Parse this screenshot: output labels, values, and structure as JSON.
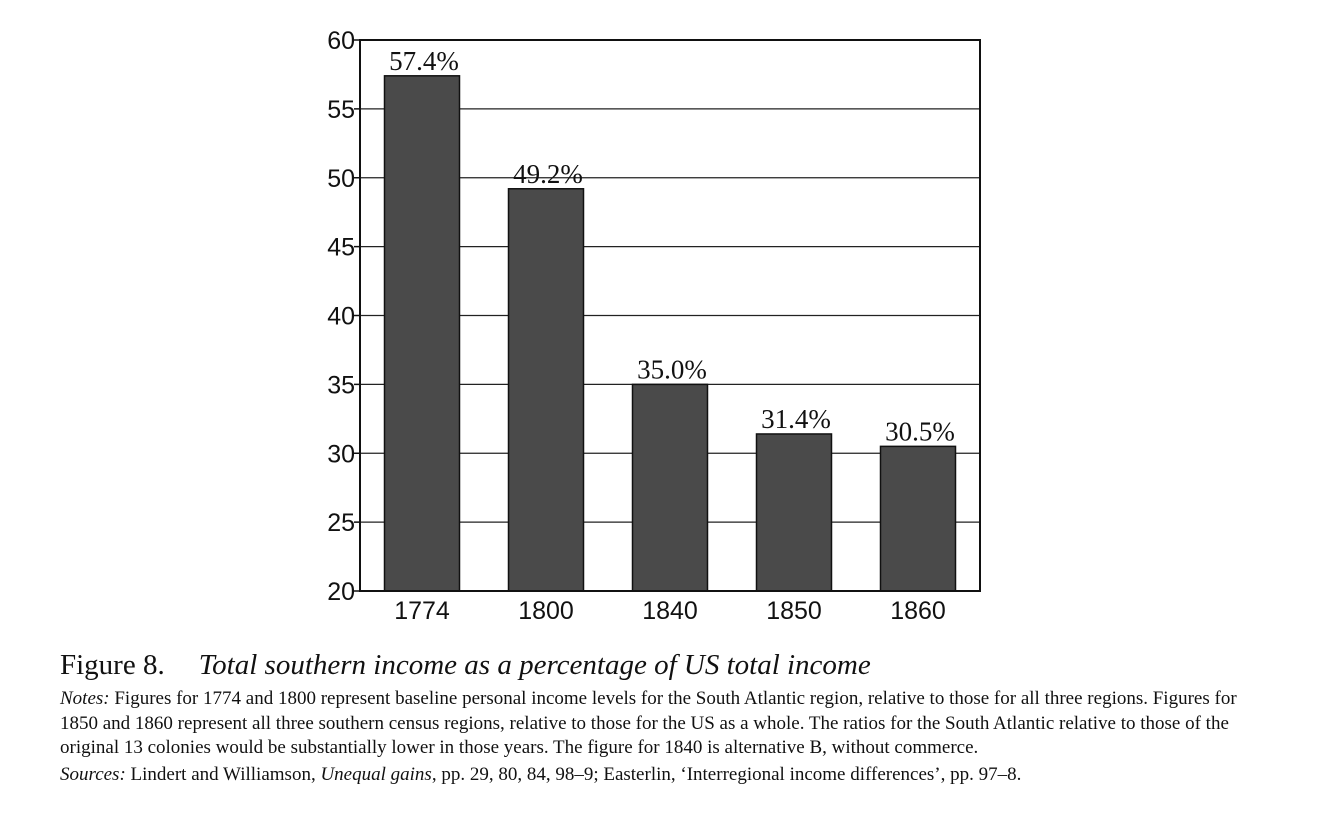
{
  "chart_data": {
    "type": "bar",
    "categories": [
      "1774",
      "1800",
      "1840",
      "1850",
      "1860"
    ],
    "values": [
      57.4,
      49.2,
      35.0,
      31.4,
      30.5
    ],
    "data_labels": [
      "57.4%",
      "49.2%",
      "35.0%",
      "31.4%",
      "30.5%"
    ],
    "yticks": [
      "20",
      "25",
      "30",
      "35",
      "40",
      "45",
      "50",
      "55",
      "60"
    ],
    "ylim": [
      20,
      60
    ],
    "grid": true,
    "bar_color": "#4a4a4a",
    "title": "",
    "xlabel": "",
    "ylabel": ""
  },
  "caption": {
    "figure_label": "Figure 8.",
    "figure_title": "Total southern income as a percentage of US total income",
    "notes_label": "Notes:",
    "notes_text": " Figures for 1774 and 1800 represent baseline personal income levels for the South Atlantic region, relative to those for all three regions. Figures for 1850 and 1860 represent all three southern census regions, relative to those for the US as a whole. The ratios for the South Atlantic relative to those of the original 13 colonies would be substantially lower in those years. The figure for 1840 is alternative B, without commerce.",
    "sources_label": "Sources:",
    "sources_text_1": " Lindert and Williamson, ",
    "sources_book": "Unequal gains",
    "sources_text_2": ", pp. 29, 80, 84, 98–9; Easterlin, ‘Interregional income differences’, pp. 97–8."
  }
}
